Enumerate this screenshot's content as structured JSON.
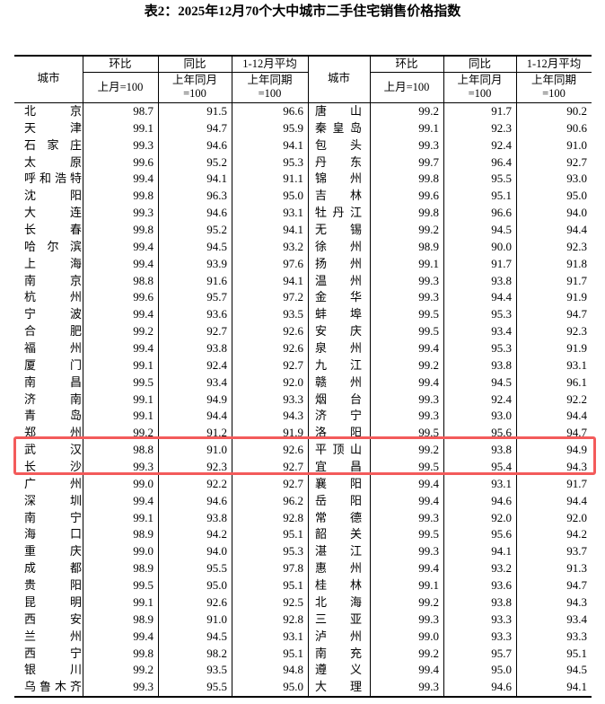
{
  "title": "表2：2025年12月70个大中城市二手住宅销售价格指数",
  "header": {
    "city": "城市",
    "mom": "环比",
    "mom_base": "上月=100",
    "yoy": "同比",
    "yoy_base_1": "上年同月",
    "yoy_base_2": "=100",
    "avg": "1-12月平均",
    "avg_base_1": "上年同期",
    "avg_base_2": "=100"
  },
  "highlight_color": "#f35b5b",
  "highlighted_rows": [
    17,
    18
  ],
  "left": [
    [
      "北　　京",
      "98.7",
      "91.5",
      "96.6"
    ],
    [
      "天　　津",
      "99.1",
      "94.7",
      "95.9"
    ],
    [
      "石家庄",
      "99.3",
      "94.6",
      "94.1"
    ],
    [
      "太　　原",
      "99.6",
      "95.2",
      "95.3"
    ],
    [
      "呼和浩特",
      "99.4",
      "94.1",
      "91.1"
    ],
    [
      "沈　　阳",
      "99.8",
      "96.3",
      "95.0"
    ],
    [
      "大　　连",
      "99.3",
      "94.6",
      "93.1"
    ],
    [
      "长　　春",
      "99.8",
      "95.2",
      "94.1"
    ],
    [
      "哈尔滨",
      "99.4",
      "94.5",
      "93.2"
    ],
    [
      "上　　海",
      "99.4",
      "93.9",
      "97.6"
    ],
    [
      "南　　京",
      "98.8",
      "91.6",
      "94.1"
    ],
    [
      "杭　　州",
      "99.6",
      "95.7",
      "97.2"
    ],
    [
      "宁　　波",
      "99.4",
      "93.6",
      "93.5"
    ],
    [
      "合　　肥",
      "99.2",
      "92.7",
      "92.6"
    ],
    [
      "福　　州",
      "99.4",
      "93.8",
      "92.6"
    ],
    [
      "厦　　门",
      "99.1",
      "92.4",
      "92.7"
    ],
    [
      "南　　昌",
      "99.5",
      "93.4",
      "92.0"
    ],
    [
      "济　　南",
      "99.1",
      "94.9",
      "93.3"
    ],
    [
      "青　　岛",
      "99.1",
      "94.4",
      "94.3"
    ],
    [
      "郑　　州",
      "99.2",
      "91.2",
      "91.9"
    ],
    [
      "武　　汉",
      "98.8",
      "91.0",
      "92.6"
    ],
    [
      "长　　沙",
      "99.3",
      "92.3",
      "92.7"
    ],
    [
      "广　　州",
      "99.0",
      "92.2",
      "92.7"
    ],
    [
      "深　　圳",
      "99.4",
      "94.6",
      "96.2"
    ],
    [
      "南　　宁",
      "99.1",
      "93.8",
      "92.8"
    ],
    [
      "海　　口",
      "98.9",
      "94.2",
      "95.1"
    ],
    [
      "重　　庆",
      "99.0",
      "94.0",
      "95.3"
    ],
    [
      "成　　都",
      "98.9",
      "95.5",
      "97.8"
    ],
    [
      "贵　　阳",
      "99.5",
      "95.0",
      "95.1"
    ],
    [
      "昆　　明",
      "99.1",
      "92.6",
      "92.5"
    ],
    [
      "西　　安",
      "98.9",
      "91.0",
      "92.8"
    ],
    [
      "兰　　州",
      "99.4",
      "94.5",
      "93.1"
    ],
    [
      "西　　宁",
      "99.8",
      "98.2",
      "95.1"
    ],
    [
      "银　　川",
      "99.2",
      "93.5",
      "94.8"
    ],
    [
      "乌鲁木齐",
      "99.3",
      "95.5",
      "95.0"
    ]
  ],
  "right": [
    [
      "唐　　山",
      "99.2",
      "91.7",
      "90.2"
    ],
    [
      "秦皇岛",
      "99.1",
      "92.3",
      "90.6"
    ],
    [
      "包　　头",
      "99.3",
      "92.4",
      "91.0"
    ],
    [
      "丹　　东",
      "99.7",
      "96.4",
      "92.7"
    ],
    [
      "锦　　州",
      "99.8",
      "95.5",
      "93.0"
    ],
    [
      "吉　　林",
      "99.6",
      "95.1",
      "95.0"
    ],
    [
      "牡丹江",
      "99.8",
      "96.6",
      "94.0"
    ],
    [
      "无　　锡",
      "99.2",
      "94.5",
      "94.4"
    ],
    [
      "徐　　州",
      "98.9",
      "90.0",
      "92.3"
    ],
    [
      "扬　　州",
      "99.1",
      "91.7",
      "91.8"
    ],
    [
      "温　　州",
      "99.3",
      "93.8",
      "91.7"
    ],
    [
      "金　　华",
      "99.3",
      "94.4",
      "91.9"
    ],
    [
      "蚌　　埠",
      "99.5",
      "95.3",
      "94.7"
    ],
    [
      "安　　庆",
      "99.5",
      "93.4",
      "92.3"
    ],
    [
      "泉　　州",
      "99.4",
      "95.3",
      "91.9"
    ],
    [
      "九　　江",
      "99.2",
      "93.8",
      "93.1"
    ],
    [
      "赣　　州",
      "99.4",
      "94.5",
      "96.1"
    ],
    [
      "烟　　台",
      "99.3",
      "92.4",
      "92.2"
    ],
    [
      "济　　宁",
      "99.3",
      "93.0",
      "94.4"
    ],
    [
      "洛　　阳",
      "99.5",
      "95.6",
      "94.7"
    ],
    [
      "平顶山",
      "99.2",
      "93.8",
      "94.9"
    ],
    [
      "宜　　昌",
      "99.5",
      "95.4",
      "94.3"
    ],
    [
      "襄　　阳",
      "99.4",
      "93.1",
      "91.7"
    ],
    [
      "岳　　阳",
      "99.4",
      "94.6",
      "94.4"
    ],
    [
      "常　　德",
      "99.3",
      "92.0",
      "92.0"
    ],
    [
      "韶　　关",
      "99.5",
      "95.6",
      "94.2"
    ],
    [
      "湛　　江",
      "99.3",
      "94.1",
      "93.7"
    ],
    [
      "惠　　州",
      "99.4",
      "93.2",
      "91.3"
    ],
    [
      "桂　　林",
      "99.1",
      "93.6",
      "94.7"
    ],
    [
      "北　　海",
      "99.2",
      "93.8",
      "94.3"
    ],
    [
      "三　　亚",
      "99.3",
      "93.3",
      "93.4"
    ],
    [
      "泸　　州",
      "99.0",
      "93.3",
      "93.3"
    ],
    [
      "南　　充",
      "99.2",
      "95.7",
      "95.1"
    ],
    [
      "遵　　义",
      "99.4",
      "95.0",
      "94.5"
    ],
    [
      "大　　理",
      "99.3",
      "94.6",
      "94.1"
    ]
  ]
}
